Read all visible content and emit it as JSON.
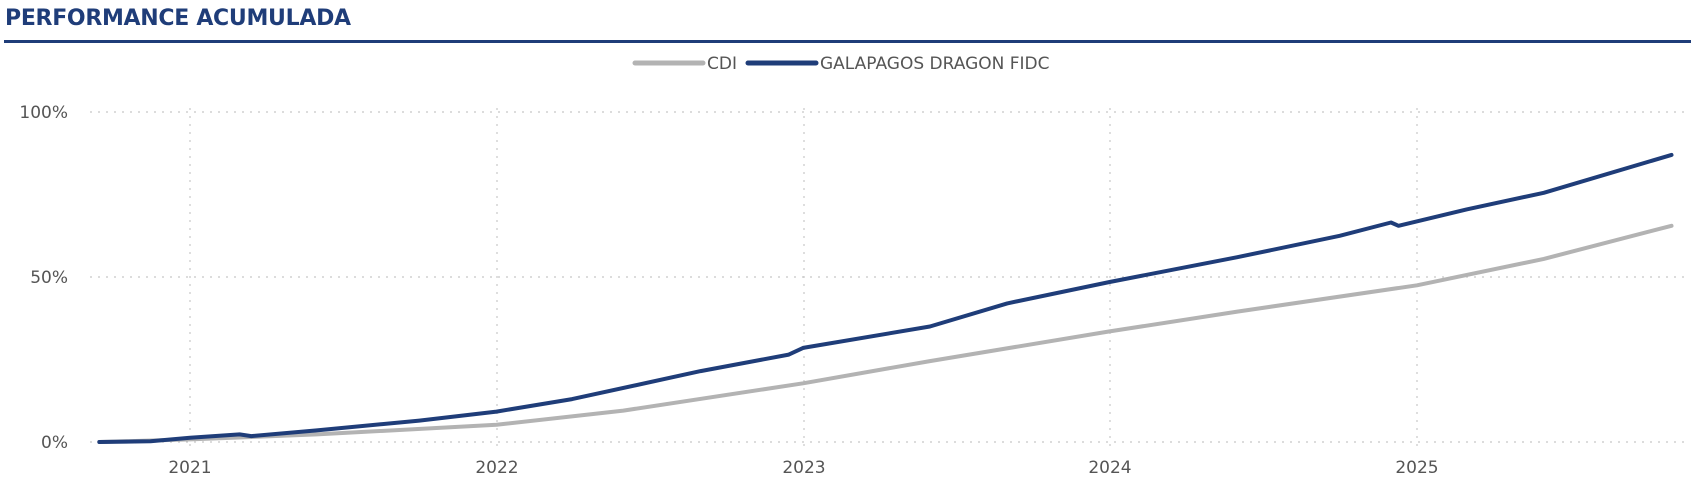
{
  "title": "PERFORMANCE ACUMULADA",
  "chart_data": {
    "type": "line",
    "title": "",
    "xlabel": "",
    "ylabel": "",
    "x_ticks": [
      "2021",
      "2022",
      "2023",
      "2024",
      "2025"
    ],
    "y_ticks": [
      "0%",
      "50%",
      "100%"
    ],
    "ylim": [
      0,
      100
    ],
    "xlim": [
      "2020-09-15",
      "2025-11-01"
    ],
    "grid": true,
    "legend_position": "top-center",
    "series": [
      {
        "name": "CDI",
        "color": "#b3b3b3",
        "points": [
          [
            "2020-09-15",
            0
          ],
          [
            "2021-01-01",
            0.8
          ],
          [
            "2021-06-01",
            2.3
          ],
          [
            "2022-01-01",
            5.2
          ],
          [
            "2022-06-01",
            9.5
          ],
          [
            "2023-01-01",
            17.8
          ],
          [
            "2023-06-01",
            24.5
          ],
          [
            "2024-01-01",
            33.5
          ],
          [
            "2024-06-01",
            39.5
          ],
          [
            "2025-01-01",
            47.5
          ],
          [
            "2025-06-01",
            55.5
          ],
          [
            "2025-10-31",
            65.5
          ]
        ]
      },
      {
        "name": "GALAPAGOS DRAGON FIDC",
        "color": "#1f3d79",
        "points": [
          [
            "2020-09-15",
            0
          ],
          [
            "2020-11-15",
            0.2
          ],
          [
            "2021-01-01",
            1.3
          ],
          [
            "2021-03-01",
            2.3
          ],
          [
            "2021-03-15",
            1.8
          ],
          [
            "2021-06-01",
            3.5
          ],
          [
            "2021-10-01",
            6.5
          ],
          [
            "2022-01-01",
            9.2
          ],
          [
            "2022-04-01",
            13.0
          ],
          [
            "2022-09-01",
            21.5
          ],
          [
            "2022-12-15",
            26.5
          ],
          [
            "2023-01-01",
            28.5
          ],
          [
            "2023-06-01",
            35.0
          ],
          [
            "2023-09-01",
            42.0
          ],
          [
            "2024-01-01",
            48.5
          ],
          [
            "2024-06-01",
            56.0
          ],
          [
            "2024-10-01",
            62.5
          ],
          [
            "2024-12-01",
            66.5
          ],
          [
            "2024-12-10",
            65.5
          ],
          [
            "2025-03-01",
            70.5
          ],
          [
            "2025-06-01",
            75.5
          ],
          [
            "2025-10-31",
            87.0
          ]
        ]
      }
    ]
  }
}
